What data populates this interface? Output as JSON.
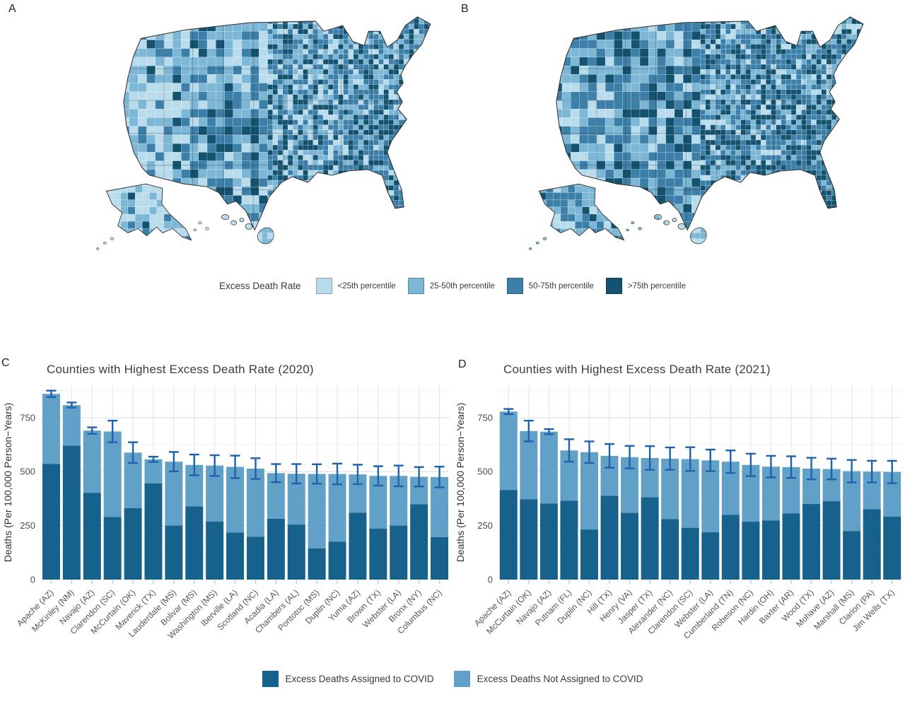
{
  "panels": {
    "a": "A",
    "b": "B",
    "c": "C",
    "d": "D"
  },
  "map_legend": {
    "title": "Excess Death Rate",
    "categories": [
      {
        "label": "<25th percentile",
        "color": "#b9dcec"
      },
      {
        "label": "25-50th percentile",
        "color": "#7cb7d6"
      },
      {
        "label": "50-75th percentile",
        "color": "#3c80aa"
      },
      {
        "label": ">75th percentile",
        "color": "#14536f"
      }
    ]
  },
  "bar_legend": [
    {
      "label": "Excess Deaths Assigned to COVID",
      "color": "#17618d"
    },
    {
      "label": "Excess Deaths Not Assigned to COVID",
      "color": "#61a1c8"
    }
  ],
  "style": {
    "error_bar_color": "#1e62ae",
    "map_outline_color": "#2e2e2e"
  },
  "chart_data": [
    {
      "type": "bar",
      "panel": "C",
      "title": "Counties with Highest Excess Death Rate (2020)",
      "ylabel": "Deaths (Per 100,000 Person−Years)",
      "ylim": [
        0,
        900
      ],
      "yticks": [
        0,
        250,
        500,
        750
      ],
      "stacked": true,
      "categories": [
        "Apache (AZ)",
        "McKinley (NM)",
        "Navajo (AZ)",
        "Clarendon (SC)",
        "McCurtain (OK)",
        "Maverick (TX)",
        "Lauderdale (MS)",
        "Bolivar (MS)",
        "Washington (MS)",
        "Iberville (LA)",
        "Scotland (NC)",
        "Acadia (LA)",
        "Chambers (AL)",
        "Pontotoc (MS)",
        "Duplin (NC)",
        "Yuma (AZ)",
        "Brown (TX)",
        "Webster (LA)",
        "Bronx (NY)",
        "Columbus (NC)"
      ],
      "series": [
        {
          "name": "Excess Deaths Assigned to COVID",
          "values": [
            536,
            620,
            401,
            290,
            331,
            445,
            250,
            339,
            269,
            218,
            198,
            282,
            255,
            144,
            176,
            310,
            236,
            250,
            349,
            197
          ]
        },
        {
          "name": "Excess Deaths Not Assigned to COVID",
          "values": [
            324,
            188,
            289,
            396,
            257,
            112,
            296,
            192,
            259,
            304,
            316,
            211,
            235,
            345,
            313,
            177,
            244,
            230,
            127,
            278
          ]
        }
      ],
      "totals": [
        860,
        808,
        690,
        686,
        588,
        557,
        546,
        531,
        528,
        522,
        514,
        493,
        490,
        489,
        489,
        487,
        480,
        480,
        476,
        475
      ],
      "error_margin": [
        15,
        12,
        15,
        50,
        48,
        12,
        45,
        48,
        48,
        52,
        48,
        42,
        45,
        45,
        48,
        45,
        45,
        48,
        45,
        48
      ]
    },
    {
      "type": "bar",
      "panel": "D",
      "title": "Counties with Highest Excess Death Rate (2021)",
      "ylabel": "Deaths (Per 100,000 Person−Years)",
      "ylim": [
        0,
        900
      ],
      "yticks": [
        0,
        250,
        500,
        750
      ],
      "stacked": true,
      "categories": [
        "Apache (AZ)",
        "McCurtain (OK)",
        "Navajo (AZ)",
        "Putnam (FL)",
        "Duplin (NC)",
        "Hill (TX)",
        "Henry (VA)",
        "Jasper (TX)",
        "Alexander (NC)",
        "Clarendon (SC)",
        "Webster (LA)",
        "Cumberland (TN)",
        "Robeson (NC)",
        "Hardin (OH)",
        "Baxter (AR)",
        "Wood (TX)",
        "Mohave (AZ)",
        "Marshall (MS)",
        "Clarion (PA)",
        "Jim Wells (TX)"
      ],
      "series": [
        {
          "name": "Excess Deaths Assigned to COVID",
          "values": [
            415,
            372,
            352,
            365,
            232,
            388,
            309,
            381,
            280,
            240,
            219,
            300,
            268,
            274,
            306,
            350,
            363,
            225,
            326,
            292
          ]
        },
        {
          "name": "Excess Deaths Not Assigned to COVID",
          "values": [
            363,
            316,
            333,
            233,
            358,
            185,
            258,
            182,
            280,
            318,
            333,
            246,
            263,
            249,
            215,
            164,
            149,
            277,
            174,
            206
          ]
        }
      ],
      "totals": [
        778,
        688,
        685,
        598,
        590,
        573,
        567,
        563,
        560,
        558,
        552,
        546,
        531,
        523,
        521,
        514,
        512,
        502,
        500,
        498
      ],
      "error_margin": [
        12,
        48,
        12,
        52,
        50,
        55,
        52,
        55,
        52,
        55,
        50,
        52,
        52,
        50,
        50,
        50,
        48,
        52,
        50,
        52
      ]
    },
    {
      "type": "choropleth",
      "panel": "A",
      "legend_title": "Excess Death Rate",
      "classes": [
        "<25th percentile",
        "25-50th percentile",
        "50-75th percentile",
        ">75th percentile"
      ],
      "colors": [
        "#b9dcec",
        "#7cb7d6",
        "#3c80aa",
        "#14536f"
      ]
    },
    {
      "type": "choropleth",
      "panel": "B",
      "legend_title": "Excess Death Rate",
      "classes": [
        "<25th percentile",
        "25-50th percentile",
        "50-75th percentile",
        ">75th percentile"
      ],
      "colors": [
        "#b9dcec",
        "#7cb7d6",
        "#3c80aa",
        "#14536f"
      ]
    }
  ]
}
